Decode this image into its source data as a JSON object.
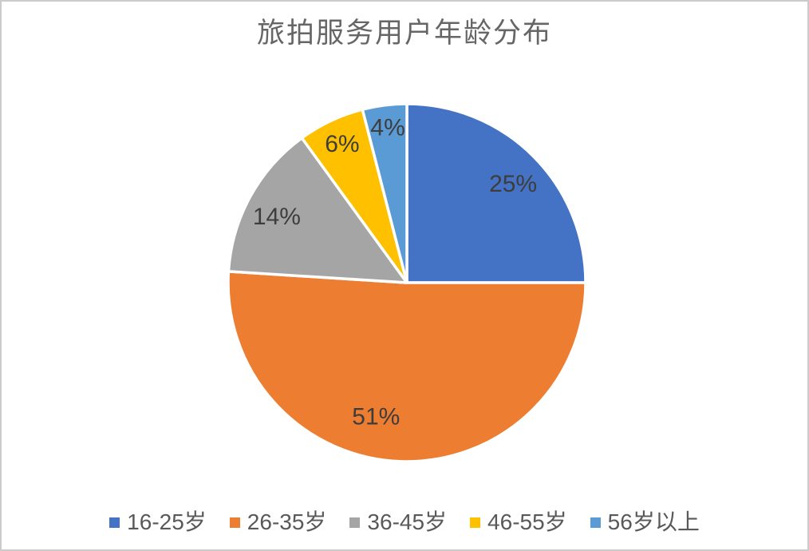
{
  "page": {
    "background": "#ffffff",
    "frame_border_color": "#cbcbcb"
  },
  "chart_data": {
    "type": "pie",
    "title": "旅拍服务用户年龄分布",
    "categories": [
      "16-25岁",
      "26-35岁",
      "36-45岁",
      "46-55岁",
      "56岁以上"
    ],
    "values": [
      25,
      51,
      14,
      6,
      4
    ],
    "unit": "%",
    "labels": [
      "25%",
      "51%",
      "14%",
      "6%",
      "4%"
    ],
    "colors": [
      "#4472C4",
      "#ED7D31",
      "#A5A5A5",
      "#FFC000",
      "#5B9BD5"
    ],
    "slice_border_color": "#FFFFFF",
    "start_angle_deg": 0,
    "direction": "clockwise",
    "legend_position": "bottom",
    "title_color": "#666666",
    "label_color": "#3d3d3d",
    "legend_text_color": "#595959"
  }
}
